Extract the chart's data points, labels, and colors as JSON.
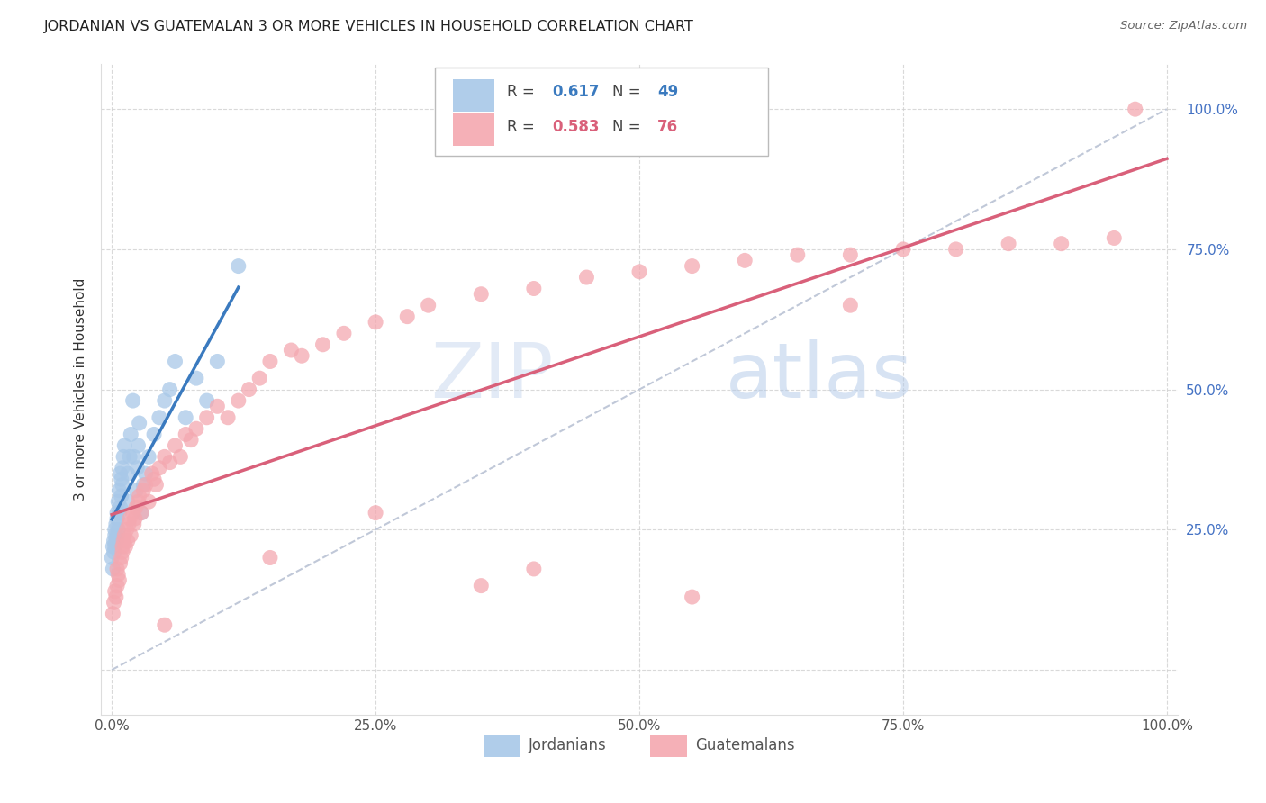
{
  "title": "JORDANIAN VS GUATEMALAN 3 OR MORE VEHICLES IN HOUSEHOLD CORRELATION CHART",
  "source": "Source: ZipAtlas.com",
  "ylabel": "3 or more Vehicles in Household",
  "watermark_zip": "ZIP",
  "watermark_atlas": "atlas",
  "jordanian_R": 0.617,
  "jordanian_N": 49,
  "guatemalan_R": 0.583,
  "guatemalan_N": 76,
  "jordanian_color": "#a8c8e8",
  "guatemalan_color": "#f4a8b0",
  "jordanian_line_color": "#3a7abf",
  "guatemalan_line_color": "#d9607a",
  "legend_label_1": "Jordanians",
  "legend_label_2": "Guatemalans",
  "jordanian_x": [
    0.0,
    0.1,
    0.1,
    0.2,
    0.2,
    0.3,
    0.3,
    0.3,
    0.4,
    0.4,
    0.5,
    0.5,
    0.5,
    0.6,
    0.6,
    0.7,
    0.7,
    0.8,
    0.8,
    0.9,
    0.9,
    1.0,
    1.0,
    1.1,
    1.2,
    1.5,
    1.5,
    1.7,
    1.8,
    2.0,
    2.1,
    2.3,
    2.4,
    2.5,
    2.6,
    2.8,
    3.0,
    3.2,
    3.5,
    4.0,
    4.5,
    5.0,
    5.5,
    6.0,
    7.0,
    8.0,
    9.0,
    10.0,
    12.0
  ],
  "jordanian_y": [
    20.0,
    22.0,
    18.0,
    23.0,
    21.0,
    24.0,
    22.0,
    25.0,
    26.0,
    23.0,
    27.0,
    28.0,
    24.0,
    30.0,
    25.0,
    32.0,
    28.0,
    35.0,
    29.0,
    34.0,
    31.0,
    36.0,
    33.0,
    38.0,
    40.0,
    30.0,
    35.0,
    38.0,
    42.0,
    48.0,
    38.0,
    32.0,
    36.0,
    40.0,
    44.0,
    28.0,
    33.0,
    35.0,
    38.0,
    42.0,
    45.0,
    48.0,
    50.0,
    55.0,
    45.0,
    52.0,
    48.0,
    55.0,
    72.0
  ],
  "guatemalan_x": [
    0.1,
    0.2,
    0.3,
    0.4,
    0.5,
    0.5,
    0.6,
    0.7,
    0.8,
    0.9,
    1.0,
    1.0,
    1.1,
    1.2,
    1.3,
    1.4,
    1.5,
    1.6,
    1.7,
    1.8,
    2.0,
    2.1,
    2.2,
    2.3,
    2.5,
    2.6,
    2.8,
    3.0,
    3.2,
    3.5,
    3.8,
    4.0,
    4.2,
    4.5,
    5.0,
    5.5,
    6.0,
    6.5,
    7.0,
    7.5,
    8.0,
    9.0,
    10.0,
    11.0,
    12.0,
    13.0,
    14.0,
    15.0,
    17.0,
    18.0,
    20.0,
    22.0,
    25.0,
    28.0,
    30.0,
    35.0,
    40.0,
    45.0,
    50.0,
    55.0,
    60.0,
    65.0,
    70.0,
    75.0,
    80.0,
    85.0,
    90.0,
    95.0,
    97.0,
    15.0,
    25.0,
    40.0,
    5.0,
    35.0,
    55.0,
    70.0
  ],
  "guatemalan_y": [
    10.0,
    12.0,
    14.0,
    13.0,
    15.0,
    18.0,
    17.0,
    16.0,
    19.0,
    20.0,
    21.0,
    22.0,
    23.0,
    24.0,
    22.0,
    25.0,
    23.0,
    26.0,
    27.0,
    24.0,
    28.0,
    26.0,
    27.0,
    29.0,
    30.0,
    31.0,
    28.0,
    32.0,
    33.0,
    30.0,
    35.0,
    34.0,
    33.0,
    36.0,
    38.0,
    37.0,
    40.0,
    38.0,
    42.0,
    41.0,
    43.0,
    45.0,
    47.0,
    45.0,
    48.0,
    50.0,
    52.0,
    55.0,
    57.0,
    56.0,
    58.0,
    60.0,
    62.0,
    63.0,
    65.0,
    67.0,
    68.0,
    70.0,
    71.0,
    72.0,
    73.0,
    74.0,
    74.0,
    75.0,
    75.0,
    76.0,
    76.0,
    77.0,
    100.0,
    20.0,
    28.0,
    18.0,
    8.0,
    15.0,
    13.0,
    65.0
  ],
  "background_color": "#ffffff",
  "grid_color": "#d0d0d0",
  "title_color": "#222222",
  "right_axis_label_color": "#4472c4"
}
